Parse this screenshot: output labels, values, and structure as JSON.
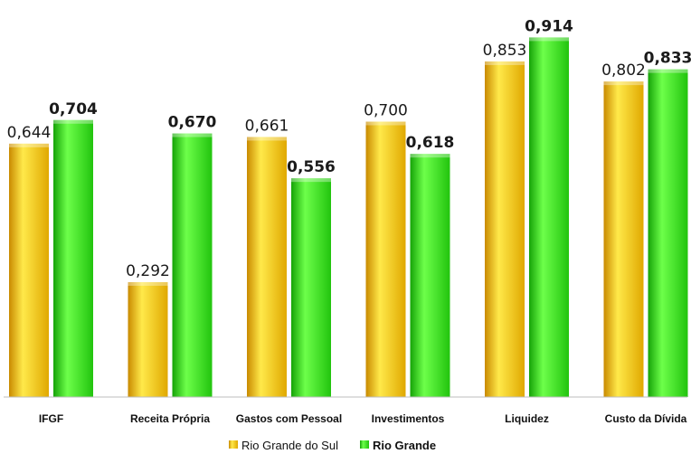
{
  "chart_data": {
    "type": "bar",
    "categories": [
      "IFGF",
      "Receita Própria",
      "Gastos com Pessoal",
      "Investimentos",
      "Liquidez",
      "Custo da Dívida"
    ],
    "value_labels": [
      [
        "0,644",
        "0,292",
        "0,661",
        "0,700",
        "0,853",
        "0,802"
      ],
      [
        "0,704",
        "0,670",
        "0,556",
        "0,618",
        "0,914",
        "0,833"
      ]
    ],
    "series": [
      {
        "name": "Rio Grande do Sul",
        "values": [
          0.644,
          0.292,
          0.661,
          0.7,
          0.853,
          0.802
        ],
        "color": "#f5c400",
        "label_bold": false
      },
      {
        "name": "Rio Grande",
        "values": [
          0.704,
          0.67,
          0.556,
          0.618,
          0.914,
          0.833
        ],
        "color": "#2ee80e",
        "label_bold": true
      }
    ],
    "ylim": [
      0,
      1
    ],
    "grid": false,
    "legend_position": "bottom-center",
    "title": "",
    "xlabel": "",
    "ylabel": ""
  },
  "colors": {
    "series1_light": "#ffe94a",
    "series1_dark": "#c98a00",
    "series2_light": "#6dff4a",
    "series2_dark": "#16a308",
    "axis": "#bdbdbd"
  }
}
